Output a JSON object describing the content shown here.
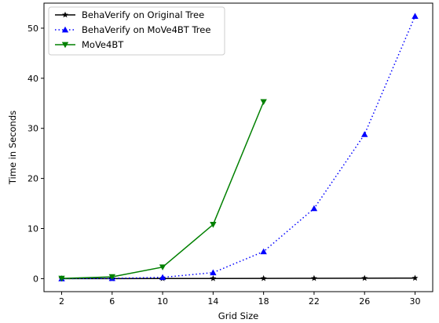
{
  "chart_data": {
    "type": "line",
    "xlabel": "Grid Size",
    "ylabel": "Time in Seconds",
    "xlim": [
      0.6,
      31.4
    ],
    "ylim": [
      -2.6,
      55
    ],
    "xticks": [
      2,
      6,
      10,
      14,
      18,
      22,
      26,
      30
    ],
    "yticks": [
      0,
      10,
      20,
      30,
      40,
      50
    ],
    "grid": false,
    "legend_position": "top-left",
    "series": [
      {
        "name": "BehaVerify on Original Tree",
        "color": "#000000",
        "linestyle": "solid",
        "marker": "star",
        "x": [
          2,
          6,
          10,
          14,
          18,
          22,
          26,
          30
        ],
        "y": [
          0.0,
          0.0,
          0.02,
          0.03,
          0.04,
          0.06,
          0.08,
          0.1
        ]
      },
      {
        "name": "BehaVerify on MoVe4BT Tree",
        "color": "#0000ff",
        "linestyle": "dotted",
        "marker": "triangle-up",
        "x": [
          2,
          6,
          10,
          14,
          18,
          22,
          26,
          30
        ],
        "y": [
          0.0,
          0.05,
          0.25,
          1.2,
          5.4,
          14.0,
          28.8,
          52.4
        ]
      },
      {
        "name": "MoVe4BT",
        "color": "#008000",
        "linestyle": "solid",
        "marker": "triangle-down",
        "x": [
          2,
          6,
          10,
          14,
          18
        ],
        "y": [
          0.05,
          0.35,
          2.3,
          10.8,
          35.3
        ]
      }
    ]
  }
}
